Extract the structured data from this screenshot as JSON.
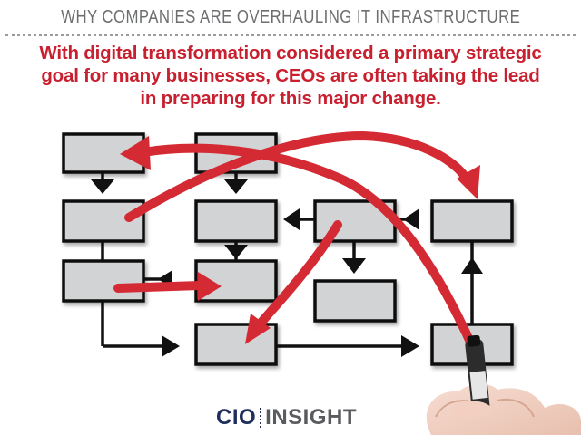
{
  "header": {
    "title": "WHY COMPANIES ARE OVERHAULING IT INFRASTRUCTURE"
  },
  "subtitle": {
    "line1": "With digital transformation considered a primary strategic",
    "line2": "goal for many businesses, CEOs are often taking the lead",
    "line3": "in preparing for this major change."
  },
  "logo": {
    "part1": "CIO",
    "part2": "INSIGHT"
  },
  "colors": {
    "accent_red": "#c8202f",
    "arrow_red": "#d42a33",
    "box_fill": "#d2d3d5",
    "text_gray": "#6d6e70",
    "logo_navy": "#1f2f5c"
  }
}
